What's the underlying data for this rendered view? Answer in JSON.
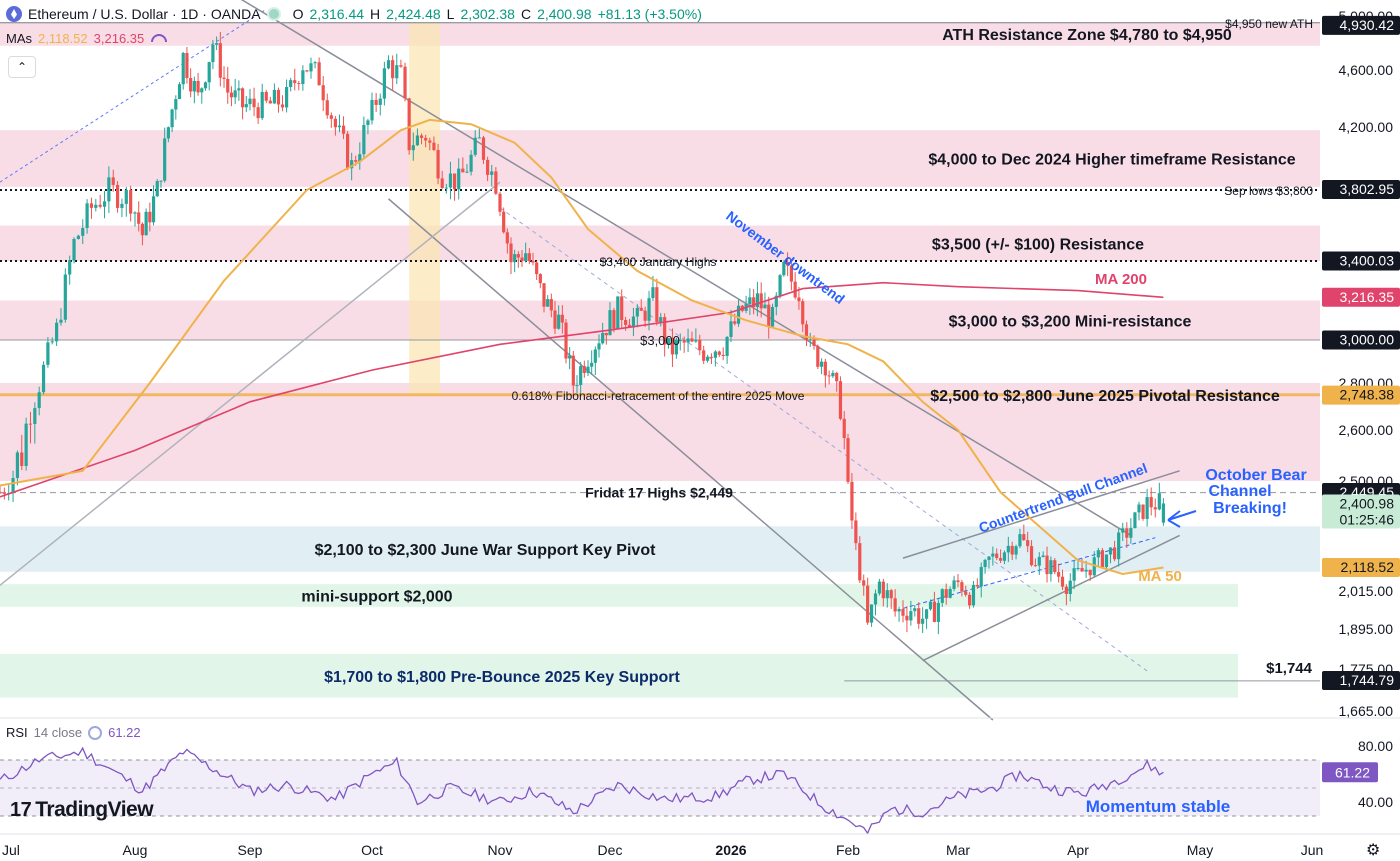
{
  "header": {
    "title": "Ethereum / U.S. Dollar · 1D · OANDA",
    "o_label": "O",
    "o_value": "2,316.44",
    "h_label": "H",
    "h_value": "2,424.48",
    "l_label": "L",
    "l_value": "2,302.38",
    "c_label": "C",
    "c_value": "2,400.98",
    "change": "+81.13 (+3.50%)"
  },
  "ma_row": {
    "label": "MAs",
    "ma50_value": "2,118.52",
    "ma200_value": "3,216.35"
  },
  "collapse_icon": "chevron-up-icon",
  "rsi_header": {
    "label": "RSI",
    "params": "14 close",
    "value": "61.22"
  },
  "logo": {
    "text": "TradingView",
    "mark": "17"
  },
  "settings_icon": "gear-icon",
  "colors": {
    "up": "#26a69a",
    "down": "#ef5350",
    "ma50": "#f0b24a",
    "ma200": "#e0436b",
    "resistance_zone": "#f8d7e2",
    "support_blue": "#dcebf2",
    "support_green": "#dcf3e4",
    "rsi": "#7e57c2",
    "annotation_blue": "#2962ff",
    "price_tag": "#131722"
  },
  "chart_data": {
    "type": "candlestick",
    "symbol": "ETHUSD",
    "exchange": "OANDA",
    "timeframe": "1D",
    "x_ticks": [
      "Jul",
      "Aug",
      "Sep",
      "Oct",
      "Nov",
      "Dec",
      "2026",
      "Feb",
      "Mar",
      "Apr",
      "May",
      "Jun"
    ],
    "y_ticks": [
      "5,000.00",
      "4,600.00",
      "4,200.00",
      "3,800.00",
      "3,400.00",
      "3,000.00",
      "2,800.00",
      "2,600.00",
      "2,500.00",
      "2,015.00",
      "1,895.00",
      "1,775.00",
      "1,665.00"
    ],
    "ylim": [
      1620,
      5010
    ],
    "x_anchors": [
      {
        "date": "2025-07-01"
      },
      {
        "date": "2025-08-01"
      },
      {
        "date": "2025-09-01"
      },
      {
        "date": "2025-10-01"
      },
      {
        "date": "2025-11-01"
      },
      {
        "date": "2025-12-01"
      },
      {
        "date": "2026-01-01"
      },
      {
        "date": "2026-02-01"
      },
      {
        "date": "2026-03-01"
      },
      {
        "date": "2026-04-01"
      },
      {
        "date": "2026-05-01"
      },
      {
        "date": "2026-06-01"
      }
    ],
    "last_candle": {
      "date": "2026-04-22",
      "open": 2316.44,
      "high": 2424.48,
      "low": 2302.38,
      "close": 2400.98
    },
    "price_path": [
      [
        "2025-07-01",
        2450
      ],
      [
        "2025-07-06",
        2560
      ],
      [
        "2025-07-10",
        2800
      ],
      [
        "2025-07-14",
        3050
      ],
      [
        "2025-07-18",
        3500
      ],
      [
        "2025-07-22",
        3700
      ],
      [
        "2025-07-26",
        3800
      ],
      [
        "2025-07-31",
        3750
      ],
      [
        "2025-08-03",
        3550
      ],
      [
        "2025-08-07",
        3800
      ],
      [
        "2025-08-10",
        4200
      ],
      [
        "2025-08-14",
        4700
      ],
      [
        "2025-08-18",
        4400
      ],
      [
        "2025-08-22",
        4800
      ],
      [
        "2025-08-26",
        4450
      ],
      [
        "2025-08-30",
        4350
      ],
      [
        "2025-09-05",
        4350
      ],
      [
        "2025-09-10",
        4400
      ],
      [
        "2025-09-14",
        4650
      ],
      [
        "2025-09-18",
        4550
      ],
      [
        "2025-09-22",
        4200
      ],
      [
        "2025-09-26",
        3950
      ],
      [
        "2025-10-01",
        4300
      ],
      [
        "2025-10-05",
        4650
      ],
      [
        "2025-10-08",
        4550
      ],
      [
        "2025-10-10",
        4100
      ],
      [
        "2025-10-14",
        4150
      ],
      [
        "2025-10-18",
        3900
      ],
      [
        "2025-10-22",
        3850
      ],
      [
        "2025-10-27",
        4100
      ],
      [
        "2025-10-31",
        3850
      ],
      [
        "2025-11-04",
        3400
      ],
      [
        "2025-11-08",
        3450
      ],
      [
        "2025-11-13",
        3200
      ],
      [
        "2025-11-17",
        3100
      ],
      [
        "2025-11-21",
        2800
      ],
      [
        "2025-11-24",
        2900
      ],
      [
        "2025-11-29",
        3050
      ],
      [
        "2025-12-03",
        3150
      ],
      [
        "2025-12-08",
        3100
      ],
      [
        "2025-12-12",
        3200
      ],
      [
        "2025-12-16",
        2950
      ],
      [
        "2025-12-20",
        2980
      ],
      [
        "2025-12-25",
        2950
      ],
      [
        "2025-12-30",
        2980
      ],
      [
        "2026-01-04",
        3150
      ],
      [
        "2026-01-08",
        3200
      ],
      [
        "2026-01-12",
        3100
      ],
      [
        "2026-01-15",
        3350
      ],
      [
        "2026-01-19",
        3250
      ],
      [
        "2026-01-22",
        2950
      ],
      [
        "2026-01-26",
        2900
      ],
      [
        "2026-01-30",
        2700
      ],
      [
        "2026-02-01",
        2450
      ],
      [
        "2026-02-03",
        2200
      ],
      [
        "2026-02-06",
        1900
      ],
      [
        "2026-02-09",
        2050
      ],
      [
        "2026-02-13",
        1950
      ],
      [
        "2026-02-17",
        1960
      ],
      [
        "2026-02-21",
        1920
      ],
      [
        "2026-02-25",
        2000
      ],
      [
        "2026-03-01",
        2050
      ],
      [
        "2026-03-05",
        2000
      ],
      [
        "2026-03-09",
        2150
      ],
      [
        "2026-03-13",
        2200
      ],
      [
        "2026-03-17",
        2250
      ],
      [
        "2026-03-21",
        2150
      ],
      [
        "2026-03-25",
        2120
      ],
      [
        "2026-03-29",
        2050
      ],
      [
        "2026-04-02",
        2100
      ],
      [
        "2026-04-06",
        2150
      ],
      [
        "2026-04-10",
        2200
      ],
      [
        "2026-04-14",
        2300
      ],
      [
        "2026-04-18",
        2400
      ],
      [
        "2026-04-22",
        2400.98
      ]
    ],
    "ma50_path": [
      [
        "2025-07-01",
        2480
      ],
      [
        "2025-07-20",
        2520
      ],
      [
        "2025-08-05",
        2800
      ],
      [
        "2025-08-25",
        3300
      ],
      [
        "2025-09-15",
        3800
      ],
      [
        "2025-09-28",
        3980
      ],
      [
        "2025-10-08",
        4180
      ],
      [
        "2025-10-15",
        4250
      ],
      [
        "2025-10-25",
        4220
      ],
      [
        "2025-11-05",
        4100
      ],
      [
        "2025-11-15",
        3880
      ],
      [
        "2025-11-25",
        3580
      ],
      [
        "2025-12-08",
        3350
      ],
      [
        "2025-12-22",
        3200
      ],
      [
        "2026-01-05",
        3100
      ],
      [
        "2026-01-20",
        3020
      ],
      [
        "2026-02-01",
        2980
      ],
      [
        "2026-02-10",
        2900
      ],
      [
        "2026-02-20",
        2720
      ],
      [
        "2026-03-01",
        2600
      ],
      [
        "2026-03-12",
        2450
      ],
      [
        "2026-03-22",
        2300
      ],
      [
        "2026-04-01",
        2150
      ],
      [
        "2026-04-12",
        2090
      ],
      [
        "2026-04-22",
        2118.52
      ]
    ],
    "ma200_path": [
      [
        "2025-07-01",
        2430
      ],
      [
        "2025-08-01",
        2560
      ],
      [
        "2025-09-01",
        2720
      ],
      [
        "2025-10-01",
        2860
      ],
      [
        "2025-11-01",
        2980
      ],
      [
        "2025-12-01",
        3050
      ],
      [
        "2026-01-01",
        3140
      ],
      [
        "2026-01-20",
        3260
      ],
      [
        "2026-02-10",
        3290
      ],
      [
        "2026-03-01",
        3270
      ],
      [
        "2026-04-01",
        3250
      ],
      [
        "2026-04-22",
        3216.35
      ]
    ],
    "rsi": {
      "ylim": [
        20,
        90
      ],
      "ticks": [
        "80.00",
        "40.00"
      ],
      "upper": 70,
      "lower": 30,
      "mid": 50,
      "last": 61.22,
      "path": [
        [
          "2025-07-01",
          55
        ],
        [
          "2025-07-10",
          70
        ],
        [
          "2025-07-20",
          76
        ],
        [
          "2025-08-03",
          48
        ],
        [
          "2025-08-14",
          76
        ],
        [
          "2025-08-22",
          64
        ],
        [
          "2025-09-01",
          48
        ],
        [
          "2025-09-10",
          52
        ],
        [
          "2025-09-22",
          42
        ],
        [
          "2025-10-01",
          60
        ],
        [
          "2025-10-07",
          68
        ],
        [
          "2025-10-12",
          40
        ],
        [
          "2025-10-20",
          50
        ],
        [
          "2025-11-01",
          40
        ],
        [
          "2025-11-10",
          48
        ],
        [
          "2025-11-21",
          33
        ],
        [
          "2025-12-03",
          52
        ],
        [
          "2025-12-15",
          42
        ],
        [
          "2025-12-28",
          44
        ],
        [
          "2026-01-06",
          56
        ],
        [
          "2026-01-15",
          60
        ],
        [
          "2026-01-25",
          38
        ],
        [
          "2026-02-03",
          24
        ],
        [
          "2026-02-06",
          18
        ],
        [
          "2026-02-12",
          35
        ],
        [
          "2026-02-20",
          33
        ],
        [
          "2026-03-01",
          44
        ],
        [
          "2026-03-10",
          50
        ],
        [
          "2026-03-17",
          60
        ],
        [
          "2026-03-25",
          50
        ],
        [
          "2026-04-02",
          46
        ],
        [
          "2026-04-10",
          55
        ],
        [
          "2026-04-18",
          66
        ],
        [
          "2026-04-22",
          61.22
        ]
      ]
    },
    "zones": [
      {
        "label": "ATH Resistance Zone $4,780 to $4,950",
        "from": 4780,
        "to": 4950,
        "kind": "resistance"
      },
      {
        "label": "$4,000 to Dec 2024 Higher timeframe Resistance",
        "from": 3820,
        "to": 4180,
        "kind": "resistance"
      },
      {
        "label": "$3,500 (+/- $100) Resistance",
        "from": 3400,
        "to": 3600,
        "kind": "resistance"
      },
      {
        "label": "$3,000 to $3,200 Mini-resistance",
        "from": 3000,
        "to": 3200,
        "kind": "resistance"
      },
      {
        "label": "$2,500 to $2,800 June 2025 Pivotal Resistance",
        "from": 2500,
        "to": 2800,
        "kind": "resistance"
      },
      {
        "label": "$2,100 to $2,300 June War Support Key Pivot",
        "from": 2100,
        "to": 2300,
        "kind": "support"
      },
      {
        "label": "mini-support $2,000",
        "from": 1965,
        "to": 2045,
        "kind": "mini"
      },
      {
        "label": "$1,700 to $1,800 Pre-Bounce 2025 Key Support",
        "from": 1700,
        "to": 1820,
        "kind": "mini"
      }
    ],
    "levels": [
      {
        "label": "$4,950 new ATH",
        "price": 4950,
        "style": "solid"
      },
      {
        "label": "Sep lows $3,800",
        "price": 3800,
        "style": "dotted"
      },
      {
        "label": "$3,400 January Highs",
        "price": 3400,
        "style": "dotted"
      },
      {
        "label": "$3,000",
        "price": 3000,
        "style": "solid"
      },
      {
        "label": "0.618% Fibonacci-retracement of the entire 2025 Move",
        "price": 2750,
        "style": "fib"
      },
      {
        "label": "Fridat 17 Highs $2,449",
        "price": 2449,
        "style": "dashed"
      },
      {
        "label": "$1,744",
        "price": 1744,
        "style": "solid"
      }
    ],
    "annotations": [
      {
        "label": "November downtrend"
      },
      {
        "label": "Countertrend Bull Channel"
      },
      {
        "label": "October Bear Channel Breaking!"
      },
      {
        "label": "MA 200"
      },
      {
        "label": "MA 50"
      },
      {
        "label": "Momentum stable"
      }
    ],
    "price_tags": [
      {
        "text": "4,930.42",
        "price": 4930.42,
        "kind": "dark"
      },
      {
        "text": "3,802.95",
        "price": 3802.95,
        "kind": "dark"
      },
      {
        "text": "3,400.03",
        "price": 3400.03,
        "kind": "dark"
      },
      {
        "text": "3,216.35",
        "price": 3216.35,
        "kind": "ma200"
      },
      {
        "text": "3,000.00",
        "price": 3000,
        "kind": "dark"
      },
      {
        "text": "2,748.38",
        "price": 2748.38,
        "kind": "ma50"
      },
      {
        "text": "2,449.45",
        "price": 2449.45,
        "kind": "dark"
      },
      {
        "text": "2,400.98",
        "price": 2400.98,
        "kind": "up",
        "extra": "01:25:46"
      },
      {
        "text": "2,118.52",
        "price": 2118.52,
        "kind": "ma50"
      },
      {
        "text": "1,744.79",
        "price": 1744.79,
        "kind": "dark"
      }
    ]
  }
}
